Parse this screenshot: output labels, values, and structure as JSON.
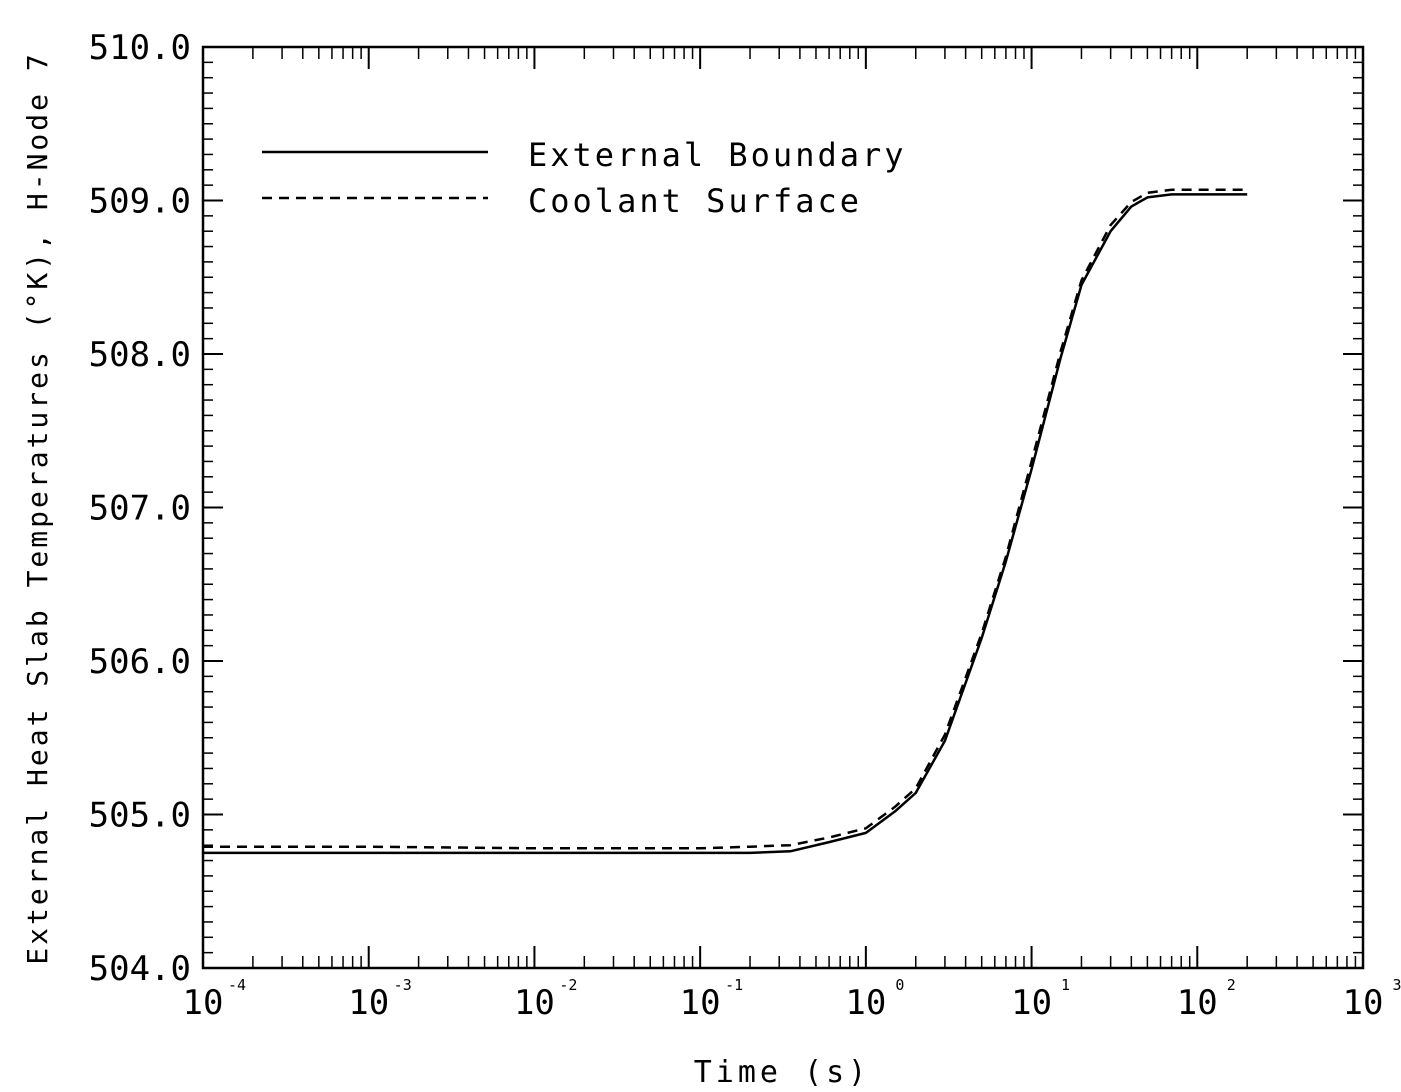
{
  "chart_data": {
    "type": "line",
    "title": "",
    "xlabel": "Time (s)",
    "ylabel": "External Heat Slab Temperatures (°K), H-Node 7",
    "xscale": "log",
    "xlim": [
      0.0001,
      1000
    ],
    "ylim": [
      504.0,
      510.0
    ],
    "grid": false,
    "legend_position": "top-left",
    "x_tick_labels": [
      {
        "base": "10",
        "exp": "-4"
      },
      {
        "base": "10",
        "exp": "-3"
      },
      {
        "base": "10",
        "exp": "-2"
      },
      {
        "base": "10",
        "exp": "-1"
      },
      {
        "base": "10",
        "exp": "0"
      },
      {
        "base": "10",
        "exp": "1"
      },
      {
        "base": "10",
        "exp": "2"
      },
      {
        "base": "10",
        "exp": "3"
      }
    ],
    "y_tick_labels": [
      "510.0",
      "509.0",
      "508.0",
      "507.0",
      "506.0",
      "505.0",
      "504.0"
    ],
    "series": [
      {
        "name": "External Boundary",
        "style": "solid",
        "color": "#000000",
        "x": [
          0.0001,
          0.001,
          0.01,
          0.1,
          0.2,
          0.35,
          0.6,
          1.0,
          1.5,
          2.0,
          3.0,
          5.0,
          7.0,
          10.0,
          15.0,
          20.0,
          30.0,
          40.0,
          50.0,
          70.0,
          100.0,
          150.0,
          200.0
        ],
        "y": [
          504.75,
          504.75,
          504.75,
          504.75,
          504.75,
          504.76,
          504.82,
          504.88,
          505.02,
          505.14,
          505.48,
          506.15,
          506.65,
          507.25,
          507.98,
          508.45,
          508.8,
          508.96,
          509.02,
          509.04,
          509.04,
          509.04,
          509.04
        ]
      },
      {
        "name": "Coolant Surface",
        "style": "dashed",
        "color": "#000000",
        "x": [
          0.0001,
          0.001,
          0.01,
          0.1,
          0.2,
          0.35,
          0.6,
          1.0,
          1.5,
          2.0,
          3.0,
          5.0,
          7.0,
          10.0,
          15.0,
          20.0,
          30.0,
          40.0,
          50.0,
          70.0,
          100.0,
          150.0,
          200.0
        ],
        "y": [
          504.79,
          504.79,
          504.78,
          504.78,
          504.79,
          504.8,
          504.85,
          504.91,
          505.05,
          505.17,
          505.52,
          506.18,
          506.68,
          507.3,
          508.02,
          508.48,
          508.84,
          508.99,
          509.05,
          509.07,
          509.07,
          509.07,
          509.07
        ]
      }
    ]
  }
}
